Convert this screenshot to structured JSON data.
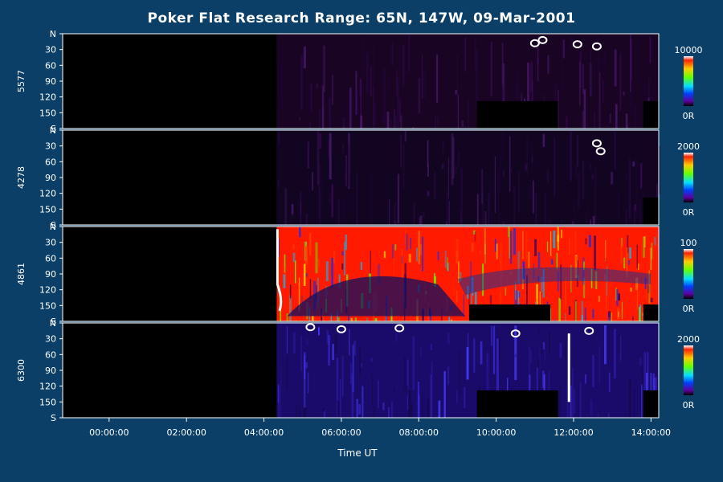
{
  "chart_data": {
    "type": "heatmap",
    "title": "Poker Flat Research Range: 65N, 147W, 09-Mar-2001",
    "xlabel": "Time UT",
    "x_range_hours": [
      -1.2,
      14.2
    ],
    "x_ticks": [
      "00:00:00",
      "02:00:00",
      "04:00:00",
      "06:00:00",
      "08:00:00",
      "10:00:00",
      "12:00:00",
      "14:00:00"
    ],
    "x_tick_hours": [
      0,
      2,
      4,
      6,
      8,
      10,
      12,
      14
    ],
    "y_range": [
      0,
      180
    ],
    "y_ticks": [
      "N",
      "30",
      "60",
      "90",
      "120",
      "150",
      "S"
    ],
    "y_tick_values": [
      0,
      30,
      60,
      90,
      120,
      150,
      180
    ],
    "data_start_hours": 4.33,
    "panels": [
      {
        "wavelength": "5577",
        "cbar_max": "10000",
        "cbar_min": "0R",
        "background": "#1a0424",
        "gap_blocks": [
          {
            "t0": 9.5,
            "t1": 11.6,
            "y0": 128,
            "y1": 180
          },
          {
            "t0": 13.8,
            "t1": 14.2,
            "y0": 128,
            "y1": 180
          }
        ],
        "bright_features": [
          {
            "t": 11.0,
            "y": 18
          },
          {
            "t": 11.2,
            "y": 12
          },
          {
            "t": 12.6,
            "y": 24
          },
          {
            "t": 12.1,
            "y": 20
          }
        ]
      },
      {
        "wavelength": "4278",
        "cbar_max": "2000",
        "cbar_min": "0R",
        "background": "#120522",
        "gap_blocks": [
          {
            "t0": 13.8,
            "t1": 14.2,
            "y0": 128,
            "y1": 180
          }
        ],
        "bright_features": [
          {
            "t": 12.6,
            "y": 25
          },
          {
            "t": 12.7,
            "y": 40
          }
        ]
      },
      {
        "wavelength": "4861",
        "cbar_max": "100",
        "cbar_min": "0R",
        "background": "#ff1a00",
        "gap_blocks": [
          {
            "t0": 9.3,
            "t1": 11.4,
            "y0": 148,
            "y1": 180
          },
          {
            "t0": 13.8,
            "t1": 14.2,
            "y0": 148,
            "y1": 180
          }
        ],
        "bright_features": []
      },
      {
        "wavelength": "6300",
        "cbar_max": "2000",
        "cbar_min": "0R",
        "background": "#1a0a6a",
        "gap_blocks": [
          {
            "t0": 9.5,
            "t1": 11.6,
            "y0": 128,
            "y1": 180
          },
          {
            "t0": 13.8,
            "t1": 14.2,
            "y0": 128,
            "y1": 180
          }
        ],
        "bright_features": [
          {
            "t": 5.2,
            "y": 8
          },
          {
            "t": 6.0,
            "y": 12
          },
          {
            "t": 7.5,
            "y": 10
          },
          {
            "t": 10.5,
            "y": 20
          },
          {
            "t": 12.4,
            "y": 15
          }
        ]
      }
    ],
    "colorbar_stops": [
      "#ffffff",
      "#ff2000",
      "#ffcc00",
      "#66ff00",
      "#00e0ff",
      "#0040ff",
      "#6000a0",
      "#000000"
    ]
  }
}
